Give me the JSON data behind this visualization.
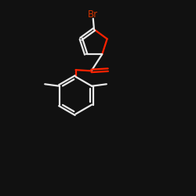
{
  "background_color": "#111111",
  "bond_color": "#e8e8e8",
  "oxygen_color": "#ff2200",
  "bromine_color": "#cc3300",
  "bond_width": 1.6,
  "figsize": [
    2.5,
    2.5
  ],
  "dpi": 100,
  "xlim": [
    0,
    10
  ],
  "ylim": [
    0,
    10
  ]
}
